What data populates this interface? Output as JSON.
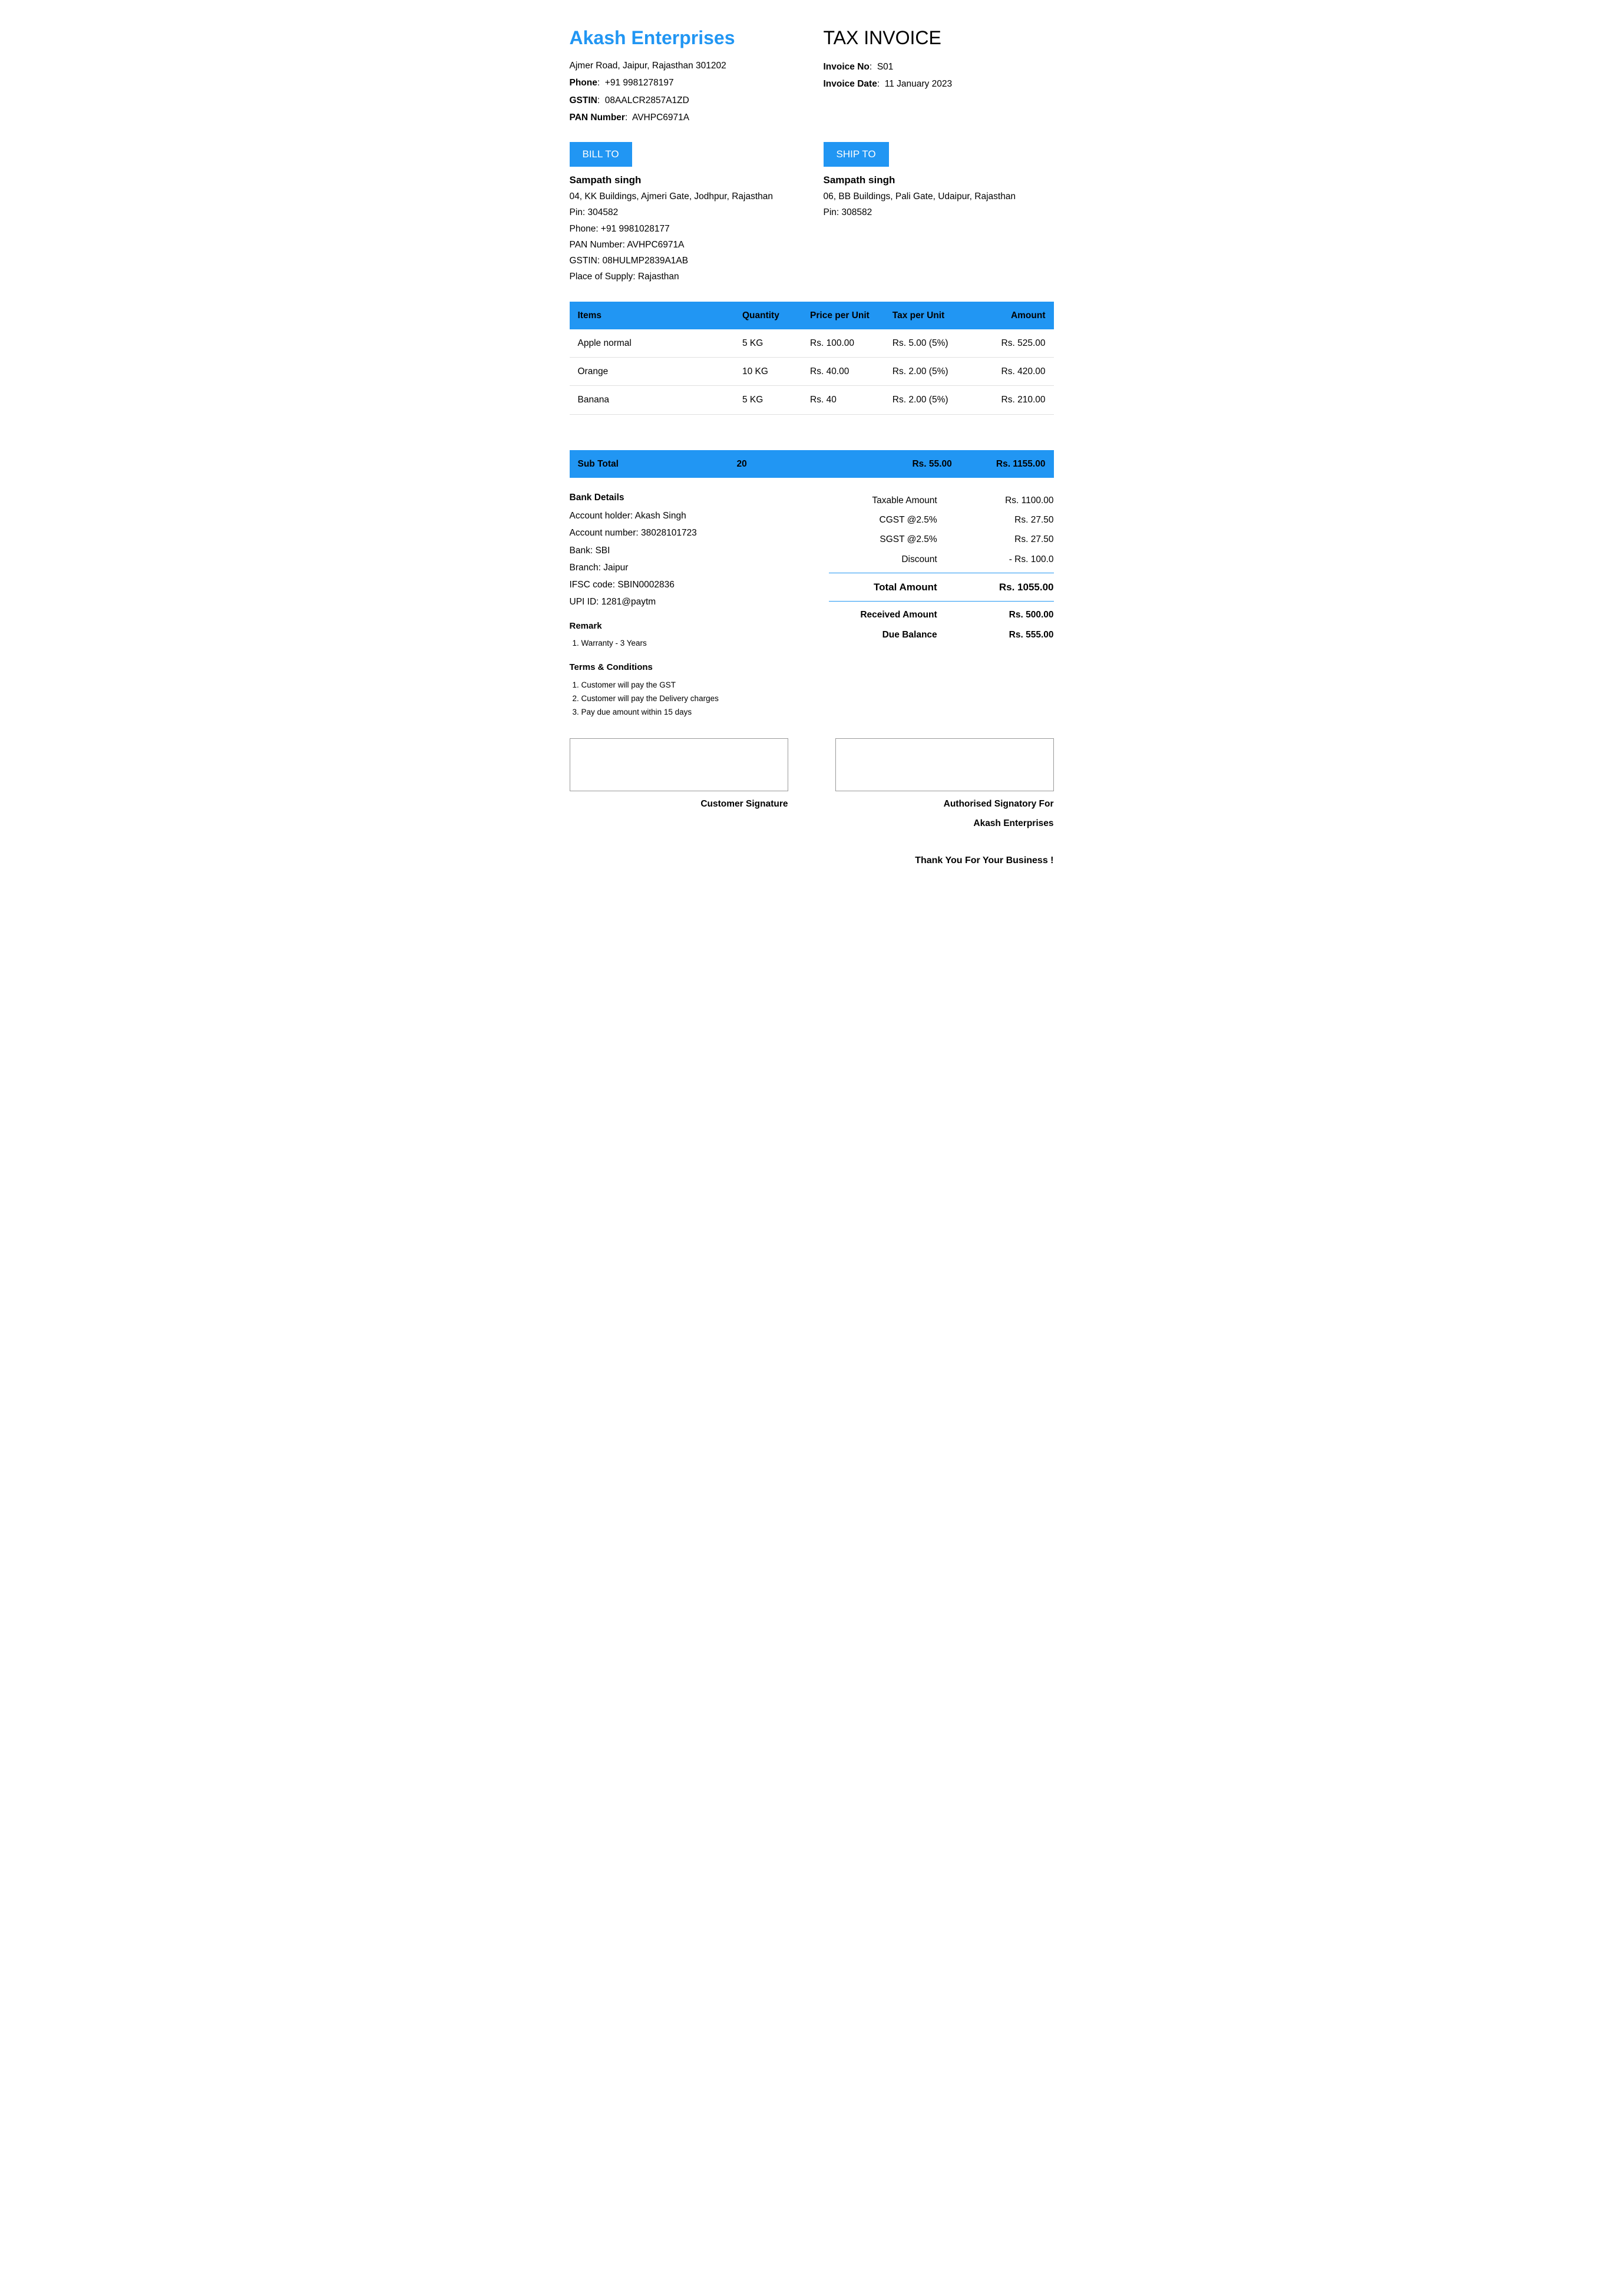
{
  "company": {
    "name": "Akash Enterprises",
    "address": "Ajmer Road, Jaipur, Rajasthan 301202",
    "phone_label": "Phone",
    "phone": "+91 9981278197",
    "gstin_label": "GSTIN",
    "gstin": "08AALCR2857A1ZD",
    "pan_label": "PAN Number",
    "pan": "AVHPC6971A"
  },
  "invoice": {
    "title": "TAX INVOICE",
    "no_label": "Invoice No",
    "no": "S01",
    "date_label": "Invoice Date",
    "date": "11 January 2023"
  },
  "bill_to": {
    "tag": "BILL TO",
    "name": "Sampath singh",
    "address": "04, KK Buildings, Ajmeri Gate, Jodhpur, Rajasthan",
    "pin": "Pin: 304582",
    "phone": "Phone:  +91 9981028177",
    "pan": "PAN Number:  AVHPC6971A",
    "gstin": "GSTIN:  08HULMP2839A1AB",
    "place": "Place of Supply: Rajasthan"
  },
  "ship_to": {
    "tag": "SHIP TO",
    "name": "Sampath singh",
    "address": "06, BB Buildings, Pali Gate, Udaipur, Rajasthan",
    "pin": "Pin: 308582"
  },
  "items_header": {
    "c1": "Items",
    "c2": "Quantity",
    "c3": "Price per Unit",
    "c4": "Tax per Unit",
    "c5": "Amount"
  },
  "items": [
    {
      "name": "Apple normal",
      "qty": "5 KG",
      "price": "Rs. 100.00",
      "tax": "Rs. 5.00 (5%)",
      "amount": "Rs. 525.00"
    },
    {
      "name": "Orange",
      "qty": "10 KG",
      "price": "Rs. 40.00",
      "tax": "Rs. 2.00 (5%)",
      "amount": "Rs. 420.00"
    },
    {
      "name": "Banana",
      "qty": "5 KG",
      "price": "Rs. 40",
      "tax": "Rs. 2.00 (5%)",
      "amount": "Rs. 210.00"
    }
  ],
  "subtotal": {
    "label": "Sub Total",
    "qty": "20",
    "tax": "Rs. 55.00",
    "amount": "Rs. 1155.00"
  },
  "bank": {
    "title": "Bank Details",
    "holder": "Account holder: Akash Singh",
    "number": "Account number: 38028101723",
    "bank": "Bank: SBI",
    "branch": "Branch: Jaipur",
    "ifsc": "IFSC code: SBIN0002836",
    "upi": "UPI ID: 1281@paytm"
  },
  "amounts": {
    "taxable_label": "Taxable Amount",
    "taxable": "Rs. 1100.00",
    "cgst_label": "CGST @2.5%",
    "cgst": "Rs. 27.50",
    "sgst_label": "SGST @2.5%",
    "sgst": "Rs. 27.50",
    "discount_label": "Discount",
    "discount": "- Rs. 100.0",
    "total_label": "Total Amount",
    "total": "Rs. 1055.00",
    "received_label": "Received Amount",
    "received": "Rs. 500.00",
    "due_label": "Due Balance",
    "due": "Rs. 555.00"
  },
  "remark": {
    "title": "Remark",
    "items": [
      "Warranty - 3 Years"
    ]
  },
  "terms": {
    "title": "Terms & Conditions",
    "items": [
      "Customer will pay the GST",
      "Customer will pay the Delivery charges",
      "Pay due amount within 15 days"
    ]
  },
  "signatures": {
    "customer": "Customer Signature",
    "auth_line1": "Authorised Signatory For",
    "auth_line2": "Akash Enterprises"
  },
  "thanks": "Thank You For Your Business !",
  "colors": {
    "accent": "#2196f3",
    "text": "#000000",
    "bg": "#ffffff",
    "row_border": "#e0e0e0"
  }
}
